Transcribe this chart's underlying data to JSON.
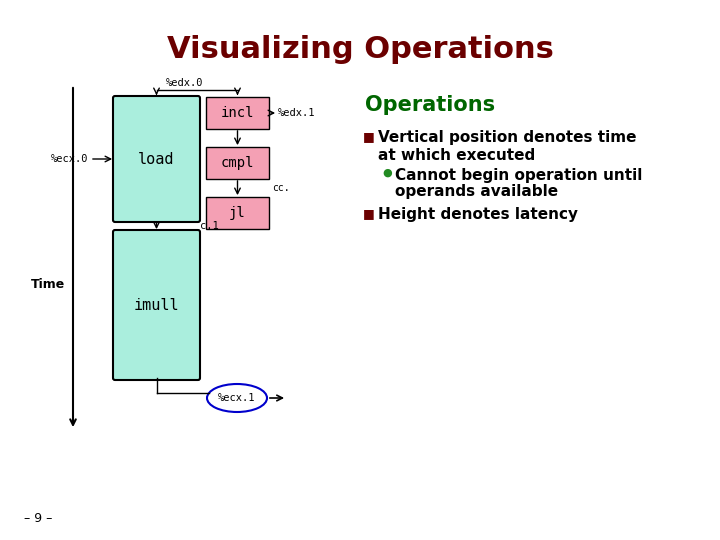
{
  "title": "Visualizing Operations",
  "title_color": "#6B0000",
  "bg_color": "#FFFFFF",
  "slide_number": "– 9 –",
  "ops_title": "Operations",
  "ops_title_color": "#006600",
  "bullet1_line1": "Vertical position denotes time",
  "bullet1_line2": "at which executed",
  "bullet1_color": "#000000",
  "bullet1_marker_color": "#6B0000",
  "sub_bullet_line1": "Cannot begin operation until",
  "sub_bullet_line2": "operands available",
  "sub_bullet_color": "#000000",
  "sub_bullet_marker_color": "#228B22",
  "bullet2": "Height denotes latency",
  "bullet2_color": "#000000",
  "bullet2_marker_color": "#6B0000",
  "load_color": "#AAEEDD",
  "imull_color": "#AAEEDD",
  "incl_color": "#F4A0B4",
  "cmpl_color": "#F4A0B4",
  "jl_color": "#F4A0B4",
  "font_size_title": 22,
  "font_size_ops_title": 15,
  "font_size_bullet": 11,
  "font_size_box": 10,
  "font_size_label": 7.5
}
